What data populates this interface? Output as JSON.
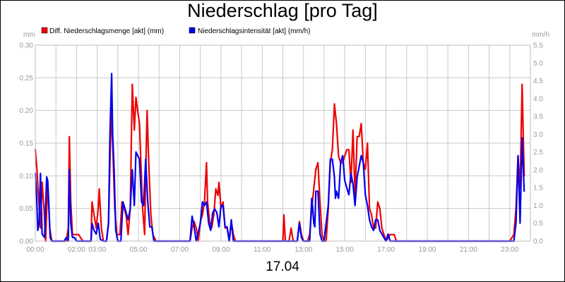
{
  "chart_data": {
    "type": "line",
    "title": "Niederschlag [pro Tag]",
    "xlabel": "17.04",
    "left_unit": "mm",
    "right_unit": "mm/h",
    "x_range_hours": [
      0,
      24
    ],
    "x_ticks": [
      "00:00",
      "02:00",
      "03:00",
      "05:00",
      "07:00",
      "09:00",
      "11:00",
      "13:00",
      "15:00",
      "17:00",
      "19:00",
      "21:00",
      "23:00"
    ],
    "x_tick_hours": [
      0,
      2,
      3,
      5,
      7,
      9,
      11,
      13,
      15,
      17,
      19,
      21,
      23
    ],
    "y_left": {
      "range": [
        0,
        0.3
      ],
      "ticks": [
        "0.00",
        "0.05",
        "0.10",
        "0.15",
        "0.20",
        "0.25",
        "0.30"
      ]
    },
    "y_right": {
      "range": [
        0,
        5.5
      ],
      "ticks": [
        "0.0",
        "0.5",
        "1.0",
        "1.5",
        "2.0",
        "2.5",
        "3.0",
        "3.5",
        "4.0",
        "4.5",
        "5.0",
        "5.5"
      ]
    },
    "grid": true,
    "legend_position": "top-left",
    "series": [
      {
        "name": "Diff. Niederschlagsmenge [akt] (mm)",
        "axis": "left",
        "color": "#ee0000",
        "points": [
          [
            0.0,
            0.14
          ],
          [
            0.08,
            0.11
          ],
          [
            0.17,
            0.06
          ],
          [
            0.25,
            0.02
          ],
          [
            0.33,
            0.09
          ],
          [
            0.42,
            0.05
          ],
          [
            0.5,
            0.0
          ],
          [
            0.6,
            0.09
          ],
          [
            0.7,
            0.02
          ],
          [
            0.8,
            0.0
          ],
          [
            1.2,
            0.0
          ],
          [
            1.5,
            0.0
          ],
          [
            1.6,
            0.02
          ],
          [
            1.65,
            0.16
          ],
          [
            1.72,
            0.06
          ],
          [
            1.8,
            0.01
          ],
          [
            2.0,
            0.01
          ],
          [
            2.1,
            0.01
          ],
          [
            2.3,
            0.0
          ],
          [
            2.7,
            0.0
          ],
          [
            2.75,
            0.06
          ],
          [
            2.85,
            0.04
          ],
          [
            2.95,
            0.02
          ],
          [
            3.05,
            0.05
          ],
          [
            3.1,
            0.08
          ],
          [
            3.2,
            0.02
          ],
          [
            3.3,
            0.0
          ],
          [
            3.45,
            0.0
          ],
          [
            3.55,
            0.03
          ],
          [
            3.62,
            0.12
          ],
          [
            3.68,
            0.2
          ],
          [
            3.75,
            0.15
          ],
          [
            3.85,
            0.05
          ],
          [
            3.95,
            0.01
          ],
          [
            4.1,
            0.01
          ],
          [
            4.2,
            0.06
          ],
          [
            4.3,
            0.05
          ],
          [
            4.4,
            0.04
          ],
          [
            4.5,
            0.01
          ],
          [
            4.6,
            0.05
          ],
          [
            4.7,
            0.24
          ],
          [
            4.8,
            0.17
          ],
          [
            4.88,
            0.22
          ],
          [
            4.96,
            0.2
          ],
          [
            5.05,
            0.18
          ],
          [
            5.12,
            0.12
          ],
          [
            5.2,
            0.05
          ],
          [
            5.3,
            0.01
          ],
          [
            5.36,
            0.12
          ],
          [
            5.42,
            0.2
          ],
          [
            5.5,
            0.12
          ],
          [
            5.6,
            0.04
          ],
          [
            5.7,
            0.01
          ],
          [
            5.85,
            0.0
          ],
          [
            7.5,
            0.0
          ],
          [
            7.6,
            0.02
          ],
          [
            7.7,
            0.03
          ],
          [
            7.8,
            0.02
          ],
          [
            7.9,
            0.0
          ],
          [
            8.0,
            0.03
          ],
          [
            8.1,
            0.04
          ],
          [
            8.2,
            0.06
          ],
          [
            8.3,
            0.12
          ],
          [
            8.35,
            0.06
          ],
          [
            8.45,
            0.03
          ],
          [
            8.55,
            0.02
          ],
          [
            8.65,
            0.04
          ],
          [
            8.75,
            0.08
          ],
          [
            8.85,
            0.07
          ],
          [
            8.9,
            0.09
          ],
          [
            9.0,
            0.05
          ],
          [
            9.1,
            0.06
          ],
          [
            9.2,
            0.02
          ],
          [
            9.3,
            0.02
          ],
          [
            9.4,
            0.0
          ],
          [
            9.5,
            0.03
          ],
          [
            9.6,
            0.01
          ],
          [
            9.7,
            0.0
          ],
          [
            12.0,
            0.0
          ],
          [
            12.05,
            0.04
          ],
          [
            12.12,
            0.0
          ],
          [
            12.3,
            0.0
          ],
          [
            12.4,
            0.02
          ],
          [
            12.5,
            0.0
          ],
          [
            12.7,
            0.0
          ],
          [
            12.8,
            0.03
          ],
          [
            12.9,
            0.01
          ],
          [
            13.0,
            0.0
          ],
          [
            13.2,
            0.0
          ],
          [
            13.3,
            0.01
          ],
          [
            13.4,
            0.05
          ],
          [
            13.5,
            0.08
          ],
          [
            13.6,
            0.11
          ],
          [
            13.7,
            0.12
          ],
          [
            13.8,
            0.06
          ],
          [
            13.9,
            0.01
          ],
          [
            14.0,
            0.0
          ],
          [
            14.1,
            0.0
          ],
          [
            14.2,
            0.05
          ],
          [
            14.3,
            0.12
          ],
          [
            14.4,
            0.14
          ],
          [
            14.5,
            0.21
          ],
          [
            14.6,
            0.18
          ],
          [
            14.7,
            0.13
          ],
          [
            14.8,
            0.12
          ],
          [
            14.9,
            0.12
          ],
          [
            15.0,
            0.13
          ],
          [
            15.1,
            0.14
          ],
          [
            15.2,
            0.14
          ],
          [
            15.3,
            0.09
          ],
          [
            15.4,
            0.17
          ],
          [
            15.5,
            0.07
          ],
          [
            15.6,
            0.16
          ],
          [
            15.7,
            0.16
          ],
          [
            15.8,
            0.18
          ],
          [
            15.9,
            0.12
          ],
          [
            16.0,
            0.11
          ],
          [
            16.1,
            0.15
          ],
          [
            16.2,
            0.05
          ],
          [
            16.3,
            0.04
          ],
          [
            16.4,
            0.02
          ],
          [
            16.5,
            0.02
          ],
          [
            16.6,
            0.06
          ],
          [
            16.7,
            0.05
          ],
          [
            16.8,
            0.02
          ],
          [
            16.9,
            0.01
          ],
          [
            17.0,
            0.0
          ],
          [
            17.2,
            0.01
          ],
          [
            17.4,
            0.01
          ],
          [
            17.5,
            0.0
          ],
          [
            23.0,
            0.0
          ],
          [
            23.2,
            0.01
          ],
          [
            23.3,
            0.05
          ],
          [
            23.4,
            0.13
          ],
          [
            23.5,
            0.08
          ],
          [
            23.6,
            0.24
          ],
          [
            23.7,
            0.1
          ]
        ]
      },
      {
        "name": "Niederschlagsintensität [akt] (mm/h)",
        "axis": "right",
        "color": "#0000ee",
        "points": [
          [
            0.0,
            1.9
          ],
          [
            0.06,
            1.3
          ],
          [
            0.12,
            0.3
          ],
          [
            0.18,
            0.5
          ],
          [
            0.25,
            1.9
          ],
          [
            0.33,
            0.2
          ],
          [
            0.45,
            0.1
          ],
          [
            0.55,
            1.8
          ],
          [
            0.6,
            1.7
          ],
          [
            0.65,
            1.1
          ],
          [
            0.72,
            0.1
          ],
          [
            0.8,
            0.0
          ],
          [
            1.4,
            0.0
          ],
          [
            1.5,
            0.1
          ],
          [
            1.6,
            0.0
          ],
          [
            1.65,
            2.0
          ],
          [
            1.72,
            0.5
          ],
          [
            1.8,
            0.1
          ],
          [
            1.9,
            0.1
          ],
          [
            2.0,
            0.0
          ],
          [
            2.2,
            0.0
          ],
          [
            2.7,
            0.0
          ],
          [
            2.75,
            0.5
          ],
          [
            2.85,
            0.3
          ],
          [
            2.95,
            0.2
          ],
          [
            3.05,
            0.5
          ],
          [
            3.15,
            0.05
          ],
          [
            3.3,
            0.0
          ],
          [
            3.45,
            0.0
          ],
          [
            3.55,
            0.5
          ],
          [
            3.62,
            3.0
          ],
          [
            3.7,
            4.7
          ],
          [
            3.75,
            3.0
          ],
          [
            3.82,
            2.0
          ],
          [
            3.9,
            0.3
          ],
          [
            4.0,
            0.0
          ],
          [
            4.15,
            0.0
          ],
          [
            4.25,
            1.1
          ],
          [
            4.35,
            0.9
          ],
          [
            4.5,
            0.6
          ],
          [
            4.6,
            0.9
          ],
          [
            4.7,
            2.0
          ],
          [
            4.8,
            1.0
          ],
          [
            4.88,
            2.5
          ],
          [
            4.96,
            2.4
          ],
          [
            5.05,
            2.3
          ],
          [
            5.15,
            1.1
          ],
          [
            5.25,
            1.0
          ],
          [
            5.35,
            2.3
          ],
          [
            5.45,
            1.1
          ],
          [
            5.55,
            0.4
          ],
          [
            5.65,
            0.4
          ],
          [
            5.75,
            0.0
          ],
          [
            7.5,
            0.0
          ],
          [
            7.6,
            0.7
          ],
          [
            7.7,
            0.4
          ],
          [
            7.8,
            0.0
          ],
          [
            8.0,
            0.5
          ],
          [
            8.1,
            1.1
          ],
          [
            8.2,
            1.0
          ],
          [
            8.3,
            1.1
          ],
          [
            8.4,
            0.5
          ],
          [
            8.5,
            0.3
          ],
          [
            8.6,
            0.8
          ],
          [
            8.7,
            0.9
          ],
          [
            8.8,
            0.8
          ],
          [
            8.9,
            0.4
          ],
          [
            9.0,
            1.0
          ],
          [
            9.1,
            1.0
          ],
          [
            9.2,
            0.4
          ],
          [
            9.3,
            0.4
          ],
          [
            9.4,
            0.0
          ],
          [
            9.5,
            0.6
          ],
          [
            9.6,
            0.0
          ],
          [
            12.5,
            0.0
          ],
          [
            12.7,
            0.0
          ],
          [
            12.8,
            0.5
          ],
          [
            12.9,
            0.1
          ],
          [
            13.0,
            0.0
          ],
          [
            13.3,
            0.0
          ],
          [
            13.4,
            1.2
          ],
          [
            13.45,
            0.9
          ],
          [
            13.5,
            0.5
          ],
          [
            13.55,
            0.4
          ],
          [
            13.6,
            1.4
          ],
          [
            13.7,
            1.4
          ],
          [
            13.8,
            0.2
          ],
          [
            13.9,
            0.0
          ],
          [
            14.0,
            0.0
          ],
          [
            14.1,
            0.5
          ],
          [
            14.2,
            1.0
          ],
          [
            14.3,
            2.3
          ],
          [
            14.4,
            2.3
          ],
          [
            14.5,
            1.8
          ],
          [
            14.55,
            1.2
          ],
          [
            14.6,
            1.4
          ],
          [
            14.7,
            1.2
          ],
          [
            14.8,
            2.2
          ],
          [
            14.9,
            2.4
          ],
          [
            15.0,
            1.7
          ],
          [
            15.1,
            1.5
          ],
          [
            15.2,
            1.3
          ],
          [
            15.3,
            1.9
          ],
          [
            15.4,
            1.6
          ],
          [
            15.5,
            1.0
          ],
          [
            15.6,
            1.8
          ],
          [
            15.7,
            2.1
          ],
          [
            15.8,
            2.4
          ],
          [
            15.9,
            2.2
          ],
          [
            16.0,
            1.3
          ],
          [
            16.1,
            1.0
          ],
          [
            16.2,
            0.6
          ],
          [
            16.3,
            0.4
          ],
          [
            16.4,
            0.3
          ],
          [
            16.5,
            0.6
          ],
          [
            16.6,
            0.6
          ],
          [
            16.7,
            0.3
          ],
          [
            16.8,
            0.2
          ],
          [
            16.9,
            0.1
          ],
          [
            17.0,
            0.0
          ],
          [
            17.1,
            0.2
          ],
          [
            17.2,
            0.0
          ],
          [
            23.2,
            0.0
          ],
          [
            23.3,
            0.5
          ],
          [
            23.4,
            2.4
          ],
          [
            23.5,
            0.5
          ],
          [
            23.6,
            2.9
          ],
          [
            23.7,
            1.4
          ]
        ]
      }
    ]
  }
}
